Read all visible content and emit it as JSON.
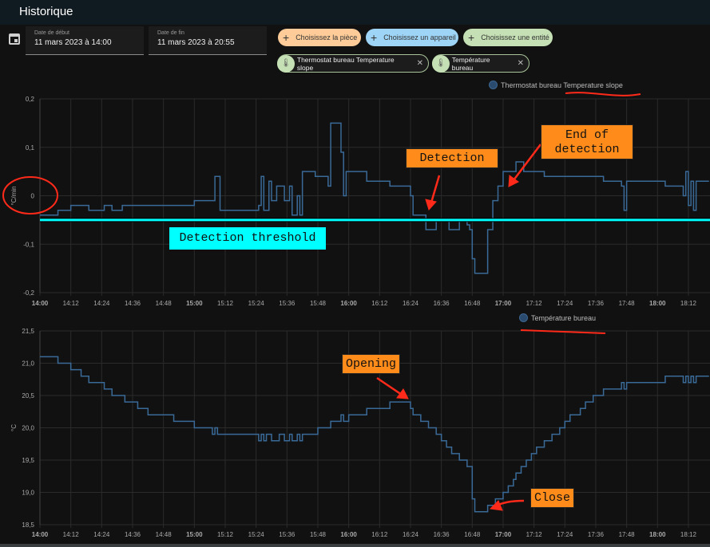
{
  "header": {
    "title": "Historique"
  },
  "date_range": {
    "start_label": "Date de début",
    "start_value": "11 mars 2023 à 14:00",
    "end_label": "Date de fin",
    "end_value": "11 mars 2023 à 20:55",
    "icon": "calendar-icon"
  },
  "pickers": [
    {
      "label": "Choisissez la pièce",
      "color": "#ffcc99"
    },
    {
      "label": "Choisissez un appareil",
      "color": "#9ed4f5"
    },
    {
      "label": "Choisissez une entité",
      "color": "#c5e0b4"
    }
  ],
  "selected_entities": [
    {
      "label": "Thermostat bureau Temperature slope",
      "icon": "thermometer-chevron-icon"
    },
    {
      "label": "Température bureau",
      "icon": "thermometer-icon"
    }
  ],
  "colors": {
    "series": "#3a6a98",
    "threshold": "#00ffff",
    "annotation": "#ff8c1a",
    "arrow": "#ff2a1a"
  },
  "annotations": {
    "threshold": "Detection threshold",
    "detection": "Detection",
    "end_detection_1": "End of",
    "end_detection_2": "detection",
    "opening": "Opening",
    "close": "Close"
  },
  "chart_data": [
    {
      "type": "line",
      "step": true,
      "legend": "Thermostat bureau Temperature slope",
      "ylabel": "°C/min",
      "ylim": [
        -0.2,
        0.2
      ],
      "yticks": [
        "0,2",
        "0,1",
        "0",
        "-0,1",
        "-0,2"
      ],
      "yvals": [
        0.2,
        0.1,
        0,
        -0.1,
        -0.2
      ],
      "xlim": [
        "14:00",
        "18:20"
      ],
      "xticks": [
        "14:00",
        "14:12",
        "14:24",
        "14:36",
        "14:48",
        "15:00",
        "15:12",
        "15:24",
        "15:36",
        "15:48",
        "16:00",
        "16:12",
        "16:24",
        "16:36",
        "16:48",
        "17:00",
        "17:12",
        "17:24",
        "17:36",
        "17:48",
        "18:00",
        "18:12"
      ],
      "threshold": -0.05,
      "points": [
        [
          "14:00",
          -0.04
        ],
        [
          "14:07",
          -0.03
        ],
        [
          "14:12",
          -0.02
        ],
        [
          "14:19",
          -0.03
        ],
        [
          "14:25",
          -0.02
        ],
        [
          "14:28",
          -0.03
        ],
        [
          "14:32",
          -0.02
        ],
        [
          "15:00",
          -0.01
        ],
        [
          "15:08",
          0.04
        ],
        [
          "15:10",
          -0.03
        ],
        [
          "15:25",
          -0.02
        ],
        [
          "15:26",
          0.04
        ],
        [
          "15:27",
          -0.03
        ],
        [
          "15:29",
          0.03
        ],
        [
          "15:30",
          -0.01
        ],
        [
          "15:32",
          0.02
        ],
        [
          "15:35",
          -0.01
        ],
        [
          "15:37",
          0.02
        ],
        [
          "15:38",
          -0.04
        ],
        [
          "15:40",
          0
        ],
        [
          "15:41",
          -0.04
        ],
        [
          "15:42",
          0.05
        ],
        [
          "15:47",
          0.04
        ],
        [
          "15:52",
          0.02
        ],
        [
          "15:53",
          0.15
        ],
        [
          "15:57",
          0.09
        ],
        [
          "15:58",
          0
        ],
        [
          "15:59",
          0.05
        ],
        [
          "16:07",
          0.03
        ],
        [
          "16:16",
          0.02
        ],
        [
          "16:24",
          0
        ],
        [
          "16:25",
          -0.04
        ],
        [
          "16:30",
          -0.07
        ],
        [
          "16:34",
          -0.05
        ],
        [
          "16:39",
          -0.07
        ],
        [
          "16:43",
          -0.05
        ],
        [
          "16:46",
          -0.06
        ],
        [
          "16:47",
          -0.07
        ],
        [
          "16:48",
          -0.13
        ],
        [
          "16:49",
          -0.16
        ],
        [
          "16:54",
          -0.07
        ],
        [
          "16:56",
          -0.01
        ],
        [
          "16:58",
          0.02
        ],
        [
          "17:00",
          0.05
        ],
        [
          "17:05",
          0.07
        ],
        [
          "17:08",
          0.05
        ],
        [
          "17:16",
          0.04
        ],
        [
          "17:39",
          0.03
        ],
        [
          "17:46",
          0.02
        ],
        [
          "17:47",
          -0.03
        ],
        [
          "17:48",
          0.03
        ],
        [
          "18:03",
          0.02
        ],
        [
          "18:10",
          0
        ],
        [
          "18:11",
          0.05
        ],
        [
          "18:12",
          -0.02
        ],
        [
          "18:13",
          0.03
        ],
        [
          "18:14",
          -0.03
        ],
        [
          "18:15",
          0.03
        ],
        [
          "18:20",
          0.03
        ]
      ]
    },
    {
      "type": "line",
      "step": true,
      "legend": "Température bureau",
      "ylabel": "°C",
      "ylim": [
        18.5,
        21.5
      ],
      "yticks": [
        "21,5",
        "21,0",
        "20,5",
        "20,0",
        "19,5",
        "19,0",
        "18,5"
      ],
      "yvals": [
        21.5,
        21,
        20.5,
        20,
        19.5,
        19,
        18.5
      ],
      "xlim": [
        "14:00",
        "18:20"
      ],
      "xticks": [
        "14:00",
        "14:12",
        "14:24",
        "14:36",
        "14:48",
        "15:00",
        "15:12",
        "15:24",
        "15:36",
        "15:48",
        "16:00",
        "16:12",
        "16:24",
        "16:36",
        "16:48",
        "17:00",
        "17:12",
        "17:24",
        "17:36",
        "17:48",
        "18:00",
        "18:12"
      ],
      "points": [
        [
          "14:00",
          21.1
        ],
        [
          "14:07",
          21.0
        ],
        [
          "14:12",
          20.9
        ],
        [
          "14:16",
          20.8
        ],
        [
          "14:19",
          20.7
        ],
        [
          "14:25",
          20.6
        ],
        [
          "14:28",
          20.5
        ],
        [
          "14:33",
          20.4
        ],
        [
          "14:38",
          20.3
        ],
        [
          "14:42",
          20.2
        ],
        [
          "14:52",
          20.1
        ],
        [
          "15:00",
          20.0
        ],
        [
          "15:07",
          19.9
        ],
        [
          "15:08",
          20.0
        ],
        [
          "15:09",
          19.9
        ],
        [
          "15:25",
          19.8
        ],
        [
          "15:26",
          19.9
        ],
        [
          "15:27",
          19.8
        ],
        [
          "15:28",
          19.9
        ],
        [
          "15:30",
          19.8
        ],
        [
          "15:33",
          19.9
        ],
        [
          "15:35",
          19.8
        ],
        [
          "15:37",
          19.9
        ],
        [
          "15:38",
          19.8
        ],
        [
          "15:40",
          19.9
        ],
        [
          "15:41",
          19.8
        ],
        [
          "15:42",
          19.9
        ],
        [
          "15:48",
          20.0
        ],
        [
          "15:53",
          20.1
        ],
        [
          "15:57",
          20.2
        ],
        [
          "15:58",
          20.1
        ],
        [
          "16:00",
          20.2
        ],
        [
          "16:07",
          20.3
        ],
        [
          "16:16",
          20.4
        ],
        [
          "16:24",
          20.3
        ],
        [
          "16:25",
          20.2
        ],
        [
          "16:28",
          20.1
        ],
        [
          "16:31",
          20.0
        ],
        [
          "16:34",
          19.9
        ],
        [
          "16:36",
          19.8
        ],
        [
          "16:38",
          19.7
        ],
        [
          "16:40",
          19.6
        ],
        [
          "16:43",
          19.5
        ],
        [
          "16:46",
          19.4
        ],
        [
          "16:48",
          18.9
        ],
        [
          "16:49",
          18.7
        ],
        [
          "16:54",
          18.8
        ],
        [
          "16:57",
          18.9
        ],
        [
          "17:00",
          19.0
        ],
        [
          "17:02",
          19.1
        ],
        [
          "17:04",
          19.2
        ],
        [
          "17:05",
          19.3
        ],
        [
          "17:07",
          19.4
        ],
        [
          "17:09",
          19.5
        ],
        [
          "17:11",
          19.6
        ],
        [
          "17:13",
          19.7
        ],
        [
          "17:16",
          19.8
        ],
        [
          "17:19",
          19.9
        ],
        [
          "17:22",
          20.0
        ],
        [
          "17:24",
          20.1
        ],
        [
          "17:26",
          20.2
        ],
        [
          "17:30",
          20.3
        ],
        [
          "17:32",
          20.4
        ],
        [
          "17:35",
          20.5
        ],
        [
          "17:39",
          20.6
        ],
        [
          "17:46",
          20.7
        ],
        [
          "17:47",
          20.6
        ],
        [
          "17:48",
          20.7
        ],
        [
          "18:03",
          20.8
        ],
        [
          "18:10",
          20.7
        ],
        [
          "18:11",
          20.8
        ],
        [
          "18:12",
          20.7
        ],
        [
          "18:13",
          20.8
        ],
        [
          "18:14",
          20.7
        ],
        [
          "18:15",
          20.8
        ],
        [
          "18:20",
          20.8
        ]
      ]
    }
  ]
}
